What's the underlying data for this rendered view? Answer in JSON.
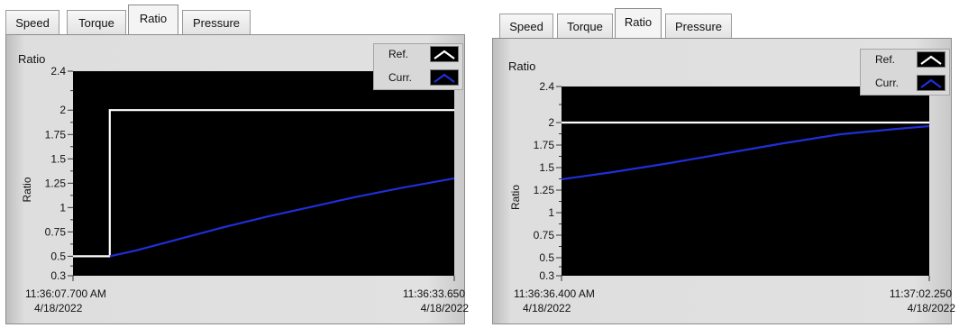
{
  "panels": [
    {
      "tabs": [
        {
          "label": "Speed"
        },
        {
          "label": "Torque"
        },
        {
          "label": "Ratio"
        },
        {
          "label": "Pressure"
        }
      ],
      "active_tab": "Ratio",
      "graph_title": "Ratio",
      "legend": [
        {
          "label": "Ref.",
          "color": "#ffffff"
        },
        {
          "label": "Curr.",
          "color": "#1f2fd8"
        }
      ],
      "x_start": {
        "time": "11:36:07.700 AM",
        "date": "4/18/2022"
      },
      "x_end": {
        "time": "11:36:33.650",
        "date": "4/18/2022"
      }
    },
    {
      "tabs": [
        {
          "label": "Speed"
        },
        {
          "label": "Torque"
        },
        {
          "label": "Ratio"
        },
        {
          "label": "Pressure"
        }
      ],
      "active_tab": "Ratio",
      "graph_title": "Ratio",
      "legend": [
        {
          "label": "Ref.",
          "color": "#ffffff"
        },
        {
          "label": "Curr.",
          "color": "#1f2fd8"
        }
      ],
      "x_start": {
        "time": "11:36:36.400 AM",
        "date": "4/18/2022"
      },
      "x_end": {
        "time": "11:37:02.250",
        "date": "4/18/2022"
      }
    }
  ],
  "chart_data": [
    {
      "type": "line",
      "ylabel": "Ratio",
      "ylim": [
        0.3,
        2.4
      ],
      "yticks": [
        "0.3",
        "0.5",
        "0.75",
        "1",
        "1.25",
        "1.5",
        "1.75",
        "2",
        "2.4"
      ],
      "xlim": [
        "11:36:07.700",
        "11:36:33.650"
      ],
      "x_tick_labels": [
        "11:36:07.700 AM 4/18/2022",
        "11:36:33.650 4/18/2022"
      ],
      "series": [
        {
          "name": "Ref.",
          "color": "#ffffff",
          "points": [
            [
              "11:36:07.700",
              0.5
            ],
            [
              "11:36:10.200",
              0.5
            ],
            [
              "11:36:10.200",
              2.0
            ],
            [
              "11:36:33.650",
              2.0
            ]
          ]
        },
        {
          "name": "Curr.",
          "color": "#1f2fd8",
          "points": [
            [
              "11:36:10.200",
              0.5
            ],
            [
              "11:36:12.000",
              0.56
            ],
            [
              "11:36:15.000",
              0.68
            ],
            [
              "11:36:18.000",
              0.8
            ],
            [
              "11:36:21.000",
              0.91
            ],
            [
              "11:36:24.000",
              1.01
            ],
            [
              "11:36:27.000",
              1.11
            ],
            [
              "11:36:30.000",
              1.2
            ],
            [
              "11:36:33.650",
              1.3
            ]
          ]
        }
      ]
    },
    {
      "type": "line",
      "ylabel": "Ratio",
      "ylim": [
        0.3,
        2.4
      ],
      "yticks": [
        "0.3",
        "0.5",
        "0.75",
        "1",
        "1.25",
        "1.5",
        "1.75",
        "2",
        "2.4"
      ],
      "xlim": [
        "11:36:36.400",
        "11:37:02.250"
      ],
      "x_tick_labels": [
        "11:36:36.400 AM 4/18/2022",
        "11:37:02.250 4/18/2022"
      ],
      "series": [
        {
          "name": "Ref.",
          "color": "#ffffff",
          "points": [
            [
              "11:36:36.400",
              2.0
            ],
            [
              "11:37:02.250",
              2.0
            ]
          ]
        },
        {
          "name": "Curr.",
          "color": "#1f2fd8",
          "points": [
            [
              "11:36:36.400",
              1.37
            ],
            [
              "11:36:40.000",
              1.45
            ],
            [
              "11:36:44.000",
              1.55
            ],
            [
              "11:36:48.000",
              1.66
            ],
            [
              "11:36:52.000",
              1.77
            ],
            [
              "11:36:56.000",
              1.87
            ],
            [
              "11:37:00.000",
              1.93
            ],
            [
              "11:37:02.250",
              1.96
            ]
          ]
        }
      ]
    }
  ]
}
